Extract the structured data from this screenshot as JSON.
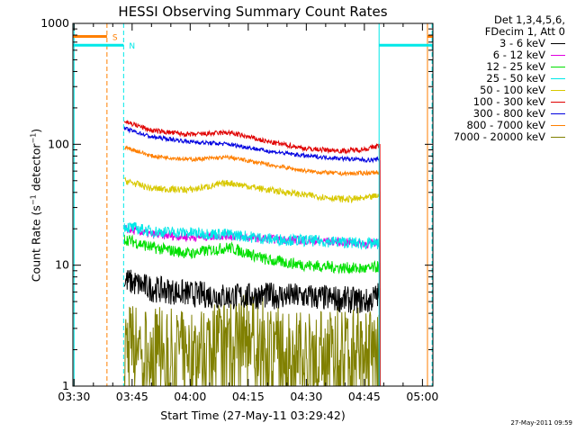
{
  "chart_data": {
    "type": "line",
    "title": "HESSI Observing Summary Count Rates",
    "xlabel": "Start Time (27-May-11 03:29:42)",
    "ylabel_main": "Count Rate (s",
    "ylabel_exp1": "−1",
    "ylabel_mid": " detector",
    "ylabel_exp2": "−1",
    "ylabel_end": ")",
    "ylog": true,
    "ylim": [
      1,
      1000
    ],
    "xlim_min": [
      -0.3,
      92.7
    ],
    "x_ticks": [
      "03:30",
      "03:45",
      "04:00",
      "04:15",
      "04:30",
      "04:45",
      "05:00"
    ],
    "x_tick_min": [
      0,
      15,
      30,
      45,
      60,
      75,
      90
    ],
    "y_ticks": [
      "1",
      "10",
      "100",
      "1000"
    ],
    "y_tick_values": [
      1,
      10,
      100,
      1000
    ],
    "legend_header": [
      "Det 1,3,4,5,6,",
      "FDecim 1, Att 0"
    ],
    "series": [
      {
        "name": "3 - 6 keV",
        "color": "#000000",
        "x": [
          13,
          20,
          30,
          40,
          50,
          60,
          70,
          76,
          79
        ],
        "y": [
          7.5,
          6.4,
          5.8,
          5.5,
          5.6,
          5.5,
          5.2,
          5.0,
          5.8
        ]
      },
      {
        "name": "6 - 12 keV",
        "color": "#e000e0",
        "x": [
          13,
          20,
          30,
          40,
          50,
          60,
          70,
          76,
          79
        ],
        "y": [
          20,
          18,
          17,
          17.5,
          16.5,
          16,
          15.5,
          15,
          15.5
        ]
      },
      {
        "name": "12 - 25 keV",
        "color": "#00e000",
        "x": [
          13,
          20,
          30,
          40,
          50,
          60,
          70,
          76,
          79
        ],
        "y": [
          16.5,
          14,
          12.5,
          14,
          11,
          10,
          9.5,
          9.3,
          9.8
        ]
      },
      {
        "name": "25 - 50 keV",
        "color": "#00e8e8",
        "x": [
          13,
          20,
          30,
          40,
          50,
          60,
          70,
          76,
          79
        ],
        "y": [
          21,
          19,
          18.5,
          18,
          16.5,
          16,
          15.5,
          15,
          15
        ]
      },
      {
        "name": "50 - 100 keV",
        "color": "#d8c800",
        "x": [
          13,
          20,
          30,
          40,
          50,
          60,
          70,
          76,
          79
        ],
        "y": [
          50,
          43,
          42,
          48,
          42,
          38,
          35,
          36,
          38
        ]
      },
      {
        "name": "100 - 300 keV",
        "color": "#e00000",
        "x": [
          13,
          20,
          30,
          40,
          50,
          60,
          70,
          76,
          79
        ],
        "y": [
          155,
          130,
          120,
          125,
          105,
          92,
          88,
          92,
          98
        ]
      },
      {
        "name": "300 - 800 keV",
        "color": "#0000e0",
        "x": [
          13,
          20,
          30,
          40,
          50,
          60,
          70,
          76,
          79
        ],
        "y": [
          135,
          115,
          105,
          100,
          88,
          80,
          76,
          74,
          75
        ]
      },
      {
        "name": "800 - 7000 keV",
        "color": "#ff7f00",
        "x": [
          13,
          20,
          30,
          40,
          50,
          60,
          70,
          76,
          79
        ],
        "y": [
          95,
          80,
          75,
          78,
          68,
          60,
          57,
          58,
          59
        ]
      },
      {
        "name": "7000 - 20000 keV",
        "color": "#808000",
        "x": [
          13,
          20,
          30,
          40,
          50,
          60,
          70,
          76,
          79
        ],
        "y": [
          2.5,
          2.3,
          2.0,
          3.0,
          2.6,
          2.0,
          2.3,
          2.2,
          2.3
        ]
      }
    ],
    "status_bars": [
      {
        "label": "S",
        "color": "#ff7f00",
        "y": 780,
        "segments": [
          [
            -0.3,
            8.5
          ],
          [
            91.3,
            92.7
          ]
        ]
      },
      {
        "label": "N",
        "color": "#00e8e8",
        "y": 660,
        "segments": [
          [
            -0.3,
            12.8
          ],
          [
            78.8,
            92.7
          ]
        ]
      }
    ],
    "vertical_markers": [
      {
        "color": "#00e8e8",
        "x": 0,
        "style": "solid"
      },
      {
        "color": "#ff7f00",
        "x": 8.5,
        "style": "dashed"
      },
      {
        "color": "#00e8e8",
        "x": 12.8,
        "style": "dashed"
      },
      {
        "color": "#00e8e8",
        "x": 78.8,
        "style": "solid"
      },
      {
        "color": "#ff7f00",
        "x": 91.3,
        "style": "solid"
      },
      {
        "color": "#00e8e8",
        "x": 92.5,
        "style": "dashed"
      }
    ],
    "footer_timestamp": "27-May-2011 09:59"
  }
}
